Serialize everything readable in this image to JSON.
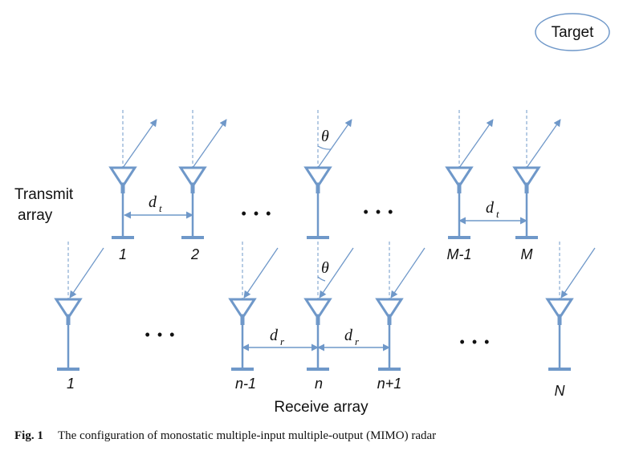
{
  "target": {
    "label": "Target"
  },
  "transmit": {
    "label_line1": "Transmit",
    "label_line2": "array",
    "indices": [
      "1",
      "2",
      "M-1",
      "M"
    ],
    "spacing_symbol": "d",
    "spacing_subscript": "t",
    "angle_symbol": "θ"
  },
  "receive": {
    "label": "Receive array",
    "indices": [
      "1",
      "n-1",
      "n",
      "n+1",
      "N"
    ],
    "spacing_symbol": "d",
    "spacing_subscript": "r",
    "angle_symbol": "θ"
  },
  "ellipsis": "• • •",
  "caption": {
    "prefix": "Fig. 1",
    "text": "The configuration of monostatic multiple-input multiple-output (MIMO) radar"
  },
  "colors": {
    "antenna": "#6f98c9",
    "text": "#111111"
  }
}
